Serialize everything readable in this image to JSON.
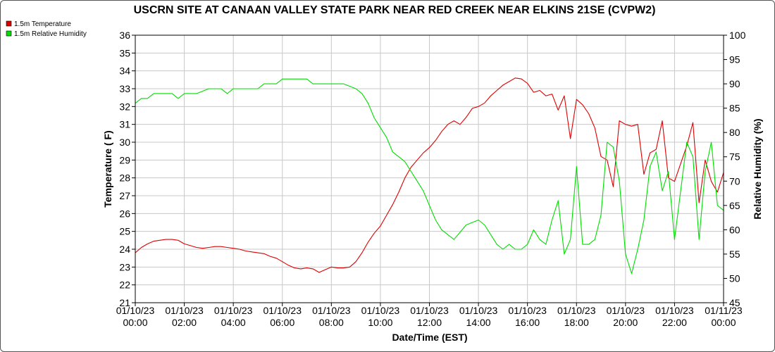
{
  "chart_data": {
    "type": "line",
    "title": "USCRN SITE AT CANAAN VALLEY STATE PARK NEAR RED CREEK NEAR ELKINS 21SE (CVPW2)",
    "xlabel": "Date/Time (EST)",
    "ylabel_left": "Temperature ( F)",
    "ylabel_right": "Relative Humidity (%)",
    "ylim_left": [
      21,
      36
    ],
    "ylim_right": [
      45,
      100
    ],
    "xlim_hours": [
      0,
      24
    ],
    "yticks_left": [
      "21",
      "22",
      "23",
      "24",
      "25",
      "26",
      "27",
      "28",
      "29",
      "30",
      "31",
      "32",
      "33",
      "34",
      "35",
      "36"
    ],
    "yticks_right": [
      "45",
      "50",
      "55",
      "60",
      "65",
      "70",
      "75",
      "80",
      "85",
      "90",
      "95",
      "100"
    ],
    "xticks": [
      {
        "date": "01/10/23",
        "time": "00:00"
      },
      {
        "date": "01/10/23",
        "time": "02:00"
      },
      {
        "date": "01/10/23",
        "time": "04:00"
      },
      {
        "date": "01/10/23",
        "time": "06:00"
      },
      {
        "date": "01/10/23",
        "time": "08:00"
      },
      {
        "date": "01/10/23",
        "time": "10:00"
      },
      {
        "date": "01/10/23",
        "time": "12:00"
      },
      {
        "date": "01/10/23",
        "time": "14:00"
      },
      {
        "date": "01/10/23",
        "time": "16:00"
      },
      {
        "date": "01/10/23",
        "time": "18:00"
      },
      {
        "date": "01/10/23",
        "time": "20:00"
      },
      {
        "date": "01/10/23",
        "time": "22:00"
      },
      {
        "date": "01/11/23",
        "time": "00:00"
      }
    ],
    "grid": true,
    "legend_position": "top-left",
    "series": [
      {
        "name": "1.5m Temperature",
        "axis": "left",
        "color": "#dd0000",
        "points": [
          [
            0.0,
            23.8
          ],
          [
            0.25,
            24.1
          ],
          [
            0.5,
            24.3
          ],
          [
            0.75,
            24.45
          ],
          [
            1.0,
            24.5
          ],
          [
            1.25,
            24.55
          ],
          [
            1.5,
            24.55
          ],
          [
            1.75,
            24.5
          ],
          [
            2.0,
            24.3
          ],
          [
            2.25,
            24.2
          ],
          [
            2.5,
            24.1
          ],
          [
            2.75,
            24.05
          ],
          [
            3.0,
            24.1
          ],
          [
            3.25,
            24.15
          ],
          [
            3.5,
            24.15
          ],
          [
            3.75,
            24.1
          ],
          [
            4.0,
            24.05
          ],
          [
            4.25,
            24.0
          ],
          [
            4.5,
            23.9
          ],
          [
            4.75,
            23.85
          ],
          [
            5.0,
            23.8
          ],
          [
            5.25,
            23.75
          ],
          [
            5.5,
            23.6
          ],
          [
            5.75,
            23.5
          ],
          [
            6.0,
            23.3
          ],
          [
            6.25,
            23.1
          ],
          [
            6.5,
            22.95
          ],
          [
            6.75,
            22.9
          ],
          [
            7.0,
            22.95
          ],
          [
            7.25,
            22.9
          ],
          [
            7.5,
            22.7
          ],
          [
            7.75,
            22.85
          ],
          [
            8.0,
            23.0
          ],
          [
            8.25,
            22.95
          ],
          [
            8.5,
            22.95
          ],
          [
            8.75,
            23.0
          ],
          [
            9.0,
            23.3
          ],
          [
            9.25,
            23.8
          ],
          [
            9.5,
            24.4
          ],
          [
            9.75,
            24.9
          ],
          [
            10.0,
            25.3
          ],
          [
            10.25,
            25.9
          ],
          [
            10.5,
            26.5
          ],
          [
            10.75,
            27.2
          ],
          [
            11.0,
            28.0
          ],
          [
            11.25,
            28.6
          ],
          [
            11.5,
            29.0
          ],
          [
            11.75,
            29.4
          ],
          [
            12.0,
            29.7
          ],
          [
            12.25,
            30.1
          ],
          [
            12.5,
            30.6
          ],
          [
            12.75,
            31.0
          ],
          [
            13.0,
            31.2
          ],
          [
            13.25,
            31.0
          ],
          [
            13.5,
            31.4
          ],
          [
            13.75,
            31.9
          ],
          [
            14.0,
            32.0
          ],
          [
            14.25,
            32.2
          ],
          [
            14.5,
            32.6
          ],
          [
            14.75,
            32.9
          ],
          [
            15.0,
            33.2
          ],
          [
            15.25,
            33.4
          ],
          [
            15.5,
            33.6
          ],
          [
            15.75,
            33.55
          ],
          [
            16.0,
            33.3
          ],
          [
            16.25,
            32.8
          ],
          [
            16.5,
            32.9
          ],
          [
            16.75,
            32.6
          ],
          [
            17.0,
            32.7
          ],
          [
            17.25,
            31.8
          ],
          [
            17.5,
            32.6
          ],
          [
            17.75,
            30.2
          ],
          [
            18.0,
            32.4
          ],
          [
            18.25,
            32.1
          ],
          [
            18.5,
            31.6
          ],
          [
            18.75,
            30.8
          ],
          [
            19.0,
            29.2
          ],
          [
            19.25,
            29.0
          ],
          [
            19.5,
            27.5
          ],
          [
            19.75,
            31.2
          ],
          [
            20.0,
            31.0
          ],
          [
            20.25,
            30.9
          ],
          [
            20.5,
            31.0
          ],
          [
            20.75,
            28.2
          ],
          [
            21.0,
            29.4
          ],
          [
            21.25,
            29.6
          ],
          [
            21.5,
            31.2
          ],
          [
            21.75,
            28.0
          ],
          [
            22.0,
            27.8
          ],
          [
            22.25,
            28.8
          ],
          [
            22.5,
            29.8
          ],
          [
            22.75,
            31.1
          ],
          [
            23.0,
            26.6
          ],
          [
            23.25,
            29.0
          ],
          [
            23.5,
            27.8
          ],
          [
            23.75,
            27.2
          ],
          [
            24.0,
            28.3
          ]
        ]
      },
      {
        "name": "1.5m Relative Humidity",
        "axis": "right",
        "color": "#00dd00",
        "points": [
          [
            0.0,
            86
          ],
          [
            0.25,
            87
          ],
          [
            0.5,
            87
          ],
          [
            0.75,
            88
          ],
          [
            1.0,
            88
          ],
          [
            1.5,
            88
          ],
          [
            1.75,
            87
          ],
          [
            2.0,
            88
          ],
          [
            2.5,
            88
          ],
          [
            3.0,
            89
          ],
          [
            3.5,
            89
          ],
          [
            3.75,
            88
          ],
          [
            4.0,
            89
          ],
          [
            4.5,
            89
          ],
          [
            5.0,
            89
          ],
          [
            5.25,
            90
          ],
          [
            5.75,
            90
          ],
          [
            6.0,
            91
          ],
          [
            6.5,
            91
          ],
          [
            7.0,
            91
          ],
          [
            7.25,
            90
          ],
          [
            7.5,
            90
          ],
          [
            8.0,
            90
          ],
          [
            8.5,
            90
          ],
          [
            9.0,
            89
          ],
          [
            9.25,
            88
          ],
          [
            9.5,
            86
          ],
          [
            9.75,
            83
          ],
          [
            10.0,
            81
          ],
          [
            10.25,
            79
          ],
          [
            10.5,
            76
          ],
          [
            10.75,
            75
          ],
          [
            11.0,
            74
          ],
          [
            11.25,
            72
          ],
          [
            11.5,
            70
          ],
          [
            11.75,
            68
          ],
          [
            12.0,
            65
          ],
          [
            12.25,
            62
          ],
          [
            12.5,
            60
          ],
          [
            12.75,
            59
          ],
          [
            13.0,
            58
          ],
          [
            13.5,
            61
          ],
          [
            14.0,
            62
          ],
          [
            14.25,
            61
          ],
          [
            14.5,
            59
          ],
          [
            14.75,
            57
          ],
          [
            15.0,
            56
          ],
          [
            15.25,
            57
          ],
          [
            15.5,
            56
          ],
          [
            15.75,
            56
          ],
          [
            16.0,
            57
          ],
          [
            16.25,
            60
          ],
          [
            16.5,
            58
          ],
          [
            16.75,
            57
          ],
          [
            17.0,
            62
          ],
          [
            17.25,
            66
          ],
          [
            17.5,
            55
          ],
          [
            17.75,
            58
          ],
          [
            18.0,
            73
          ],
          [
            18.25,
            57
          ],
          [
            18.5,
            57
          ],
          [
            18.75,
            58
          ],
          [
            19.0,
            63
          ],
          [
            19.25,
            78
          ],
          [
            19.5,
            77
          ],
          [
            19.75,
            70
          ],
          [
            20.0,
            55
          ],
          [
            20.25,
            51
          ],
          [
            20.5,
            56
          ],
          [
            20.75,
            62
          ],
          [
            21.0,
            73
          ],
          [
            21.25,
            76
          ],
          [
            21.5,
            68
          ],
          [
            21.75,
            72
          ],
          [
            22.0,
            58
          ],
          [
            22.25,
            68
          ],
          [
            22.5,
            78
          ],
          [
            22.75,
            75
          ],
          [
            23.0,
            58
          ],
          [
            23.25,
            72
          ],
          [
            23.5,
            78
          ],
          [
            23.75,
            65
          ],
          [
            24.0,
            64
          ]
        ]
      }
    ]
  }
}
